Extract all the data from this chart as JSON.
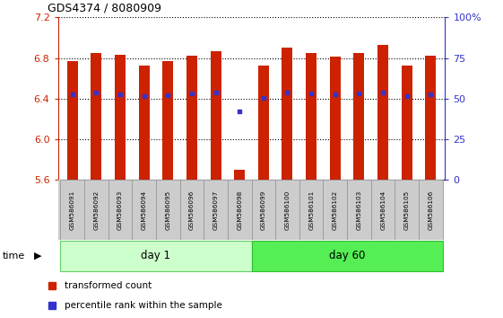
{
  "title": "GDS4374 / 8080909",
  "samples": [
    "GSM586091",
    "GSM586092",
    "GSM586093",
    "GSM586094",
    "GSM586095",
    "GSM586096",
    "GSM586097",
    "GSM586098",
    "GSM586099",
    "GSM586100",
    "GSM586101",
    "GSM586102",
    "GSM586103",
    "GSM586104",
    "GSM586105",
    "GSM586106"
  ],
  "bar_tops": [
    6.77,
    6.85,
    6.83,
    6.73,
    6.77,
    6.82,
    6.87,
    5.7,
    6.73,
    6.9,
    6.85,
    6.81,
    6.85,
    6.93,
    6.73,
    6.82
  ],
  "bar_bottom": 5.6,
  "blue_dot_y": [
    6.44,
    6.46,
    6.44,
    6.42,
    6.43,
    6.45,
    6.46,
    6.27,
    6.41,
    6.46,
    6.45,
    6.44,
    6.45,
    6.46,
    6.42,
    6.44
  ],
  "ylim": [
    5.6,
    7.2
  ],
  "yticks_left": [
    5.6,
    6.0,
    6.4,
    6.8,
    7.2
  ],
  "yticks_right": [
    0,
    25,
    50,
    75,
    100
  ],
  "yticks_right_labels": [
    "0",
    "25",
    "50",
    "75",
    "100%"
  ],
  "bar_color": "#cc2200",
  "blue_color": "#3333cc",
  "day1_samples": 8,
  "day60_samples": 8,
  "day1_label": "day 1",
  "day60_label": "day 60",
  "day1_color": "#ccffcc",
  "day60_color": "#55ee55",
  "time_label": "time",
  "legend_red": "transformed count",
  "legend_blue": "percentile rank within the sample",
  "background_color": "#ffffff",
  "sample_box_color": "#cccccc",
  "bar_width": 0.45
}
